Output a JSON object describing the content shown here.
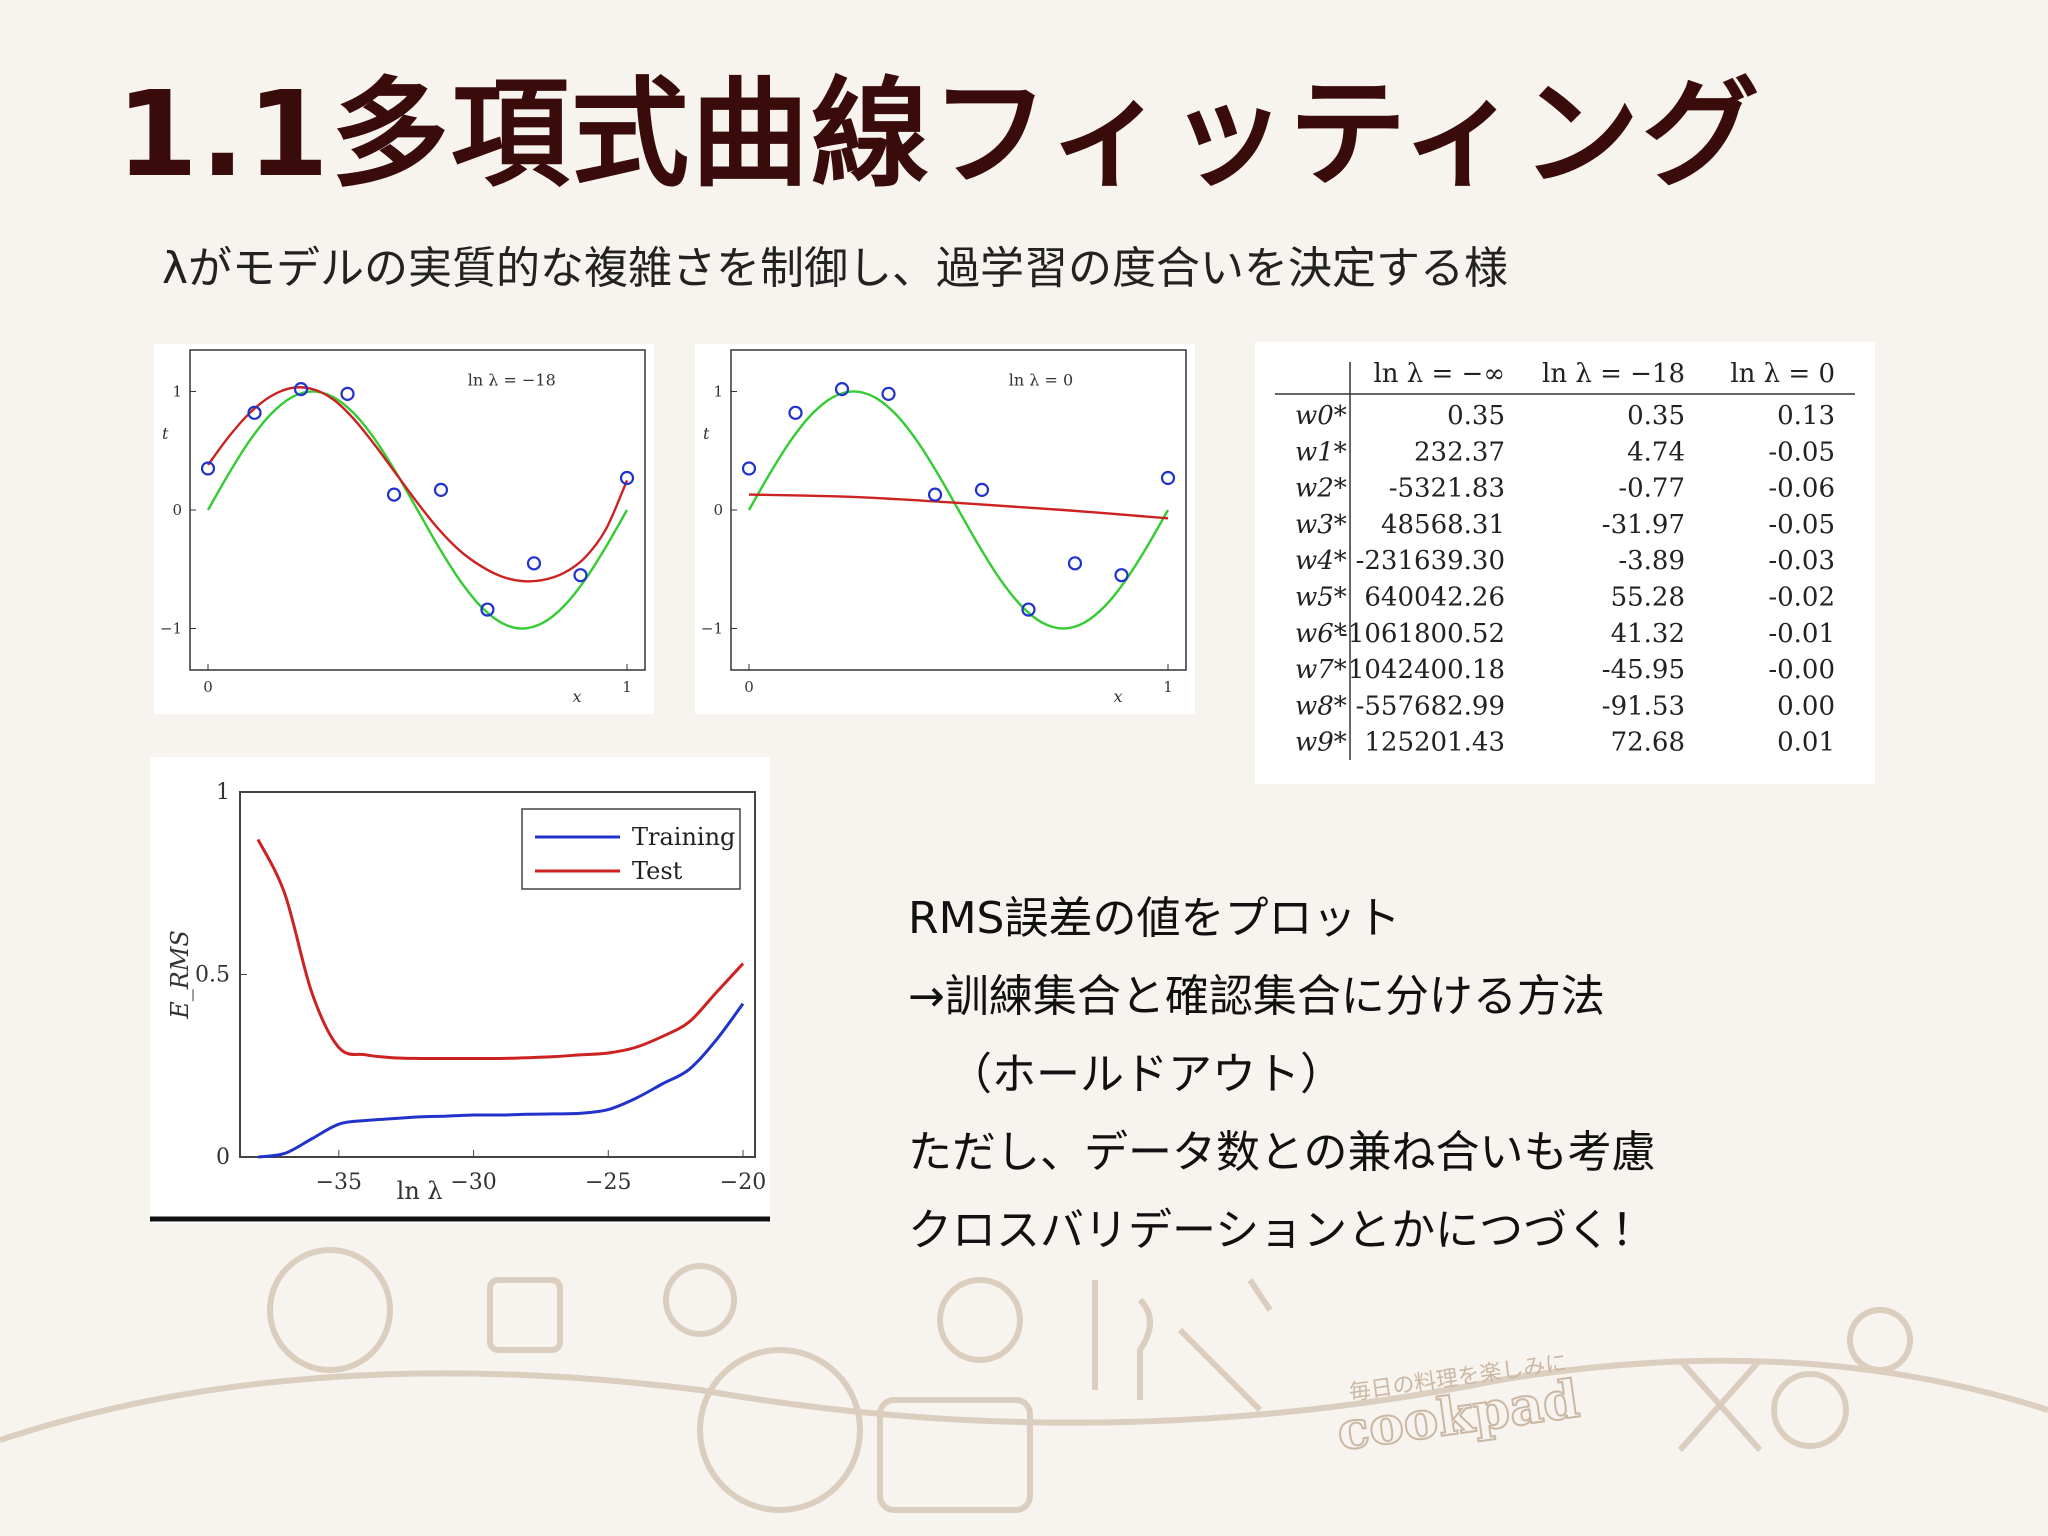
{
  "slide": {
    "title": "1.1多項式曲線フィッティング",
    "subtitle": "λがモデルの実質的な複雑さを制御し、過学習の度合いを決定する様"
  },
  "notes": [
    "RMS誤差の値をプロット",
    "→訓練集合と確認集合に分ける方法",
    "（ホールドアウト）",
    "ただし、データ数との兼ね合いも考慮",
    "クロスバリデーションとかにつづく！"
  ],
  "watermark": {
    "tagline": "毎日の料理を楽しみに",
    "brand": "cookpad"
  },
  "chart_data": [
    {
      "type": "scatter",
      "annotation": "ln λ = −18",
      "xlabel": "x",
      "ylabel": "t",
      "xlim": [
        0,
        1
      ],
      "ylim": [
        -1.35,
        1.35
      ],
      "xticks": [
        "0",
        "1"
      ],
      "yticks": [
        "−1",
        "0",
        "1"
      ],
      "points": {
        "x": [
          0.0,
          0.111,
          0.222,
          0.333,
          0.444,
          0.556,
          0.667,
          0.778,
          0.889,
          1.0
        ],
        "y": [
          0.35,
          0.82,
          1.02,
          0.98,
          0.13,
          0.17,
          -0.84,
          -0.45,
          -0.55,
          0.27
        ]
      },
      "series": [
        {
          "name": "",
          "color": "#33cc33",
          "x": [
            0,
            0.05,
            0.1,
            0.15,
            0.2,
            0.25,
            0.3,
            0.35,
            0.4,
            0.45,
            0.5,
            0.55,
            0.6,
            0.65,
            0.7,
            0.75,
            0.8,
            0.85,
            0.9,
            0.95,
            1.0
          ],
          "y": [
            0,
            0.309,
            0.588,
            0.809,
            0.951,
            1.0,
            0.951,
            0.809,
            0.588,
            0.309,
            0,
            -0.309,
            -0.588,
            -0.809,
            -0.951,
            -1.0,
            -0.951,
            -0.809,
            -0.588,
            -0.309,
            0
          ]
        },
        {
          "name": "",
          "color": "#cc2222",
          "x": [
            0,
            0.05,
            0.1,
            0.15,
            0.2,
            0.25,
            0.3,
            0.35,
            0.4,
            0.45,
            0.5,
            0.55,
            0.6,
            0.65,
            0.7,
            0.75,
            0.8,
            0.85,
            0.9,
            0.95,
            1.0
          ],
          "y": [
            0.38,
            0.62,
            0.82,
            0.96,
            1.03,
            1.02,
            0.93,
            0.76,
            0.54,
            0.3,
            0.06,
            -0.16,
            -0.34,
            -0.47,
            -0.56,
            -0.6,
            -0.59,
            -0.53,
            -0.4,
            -0.16,
            0.25
          ]
        }
      ]
    },
    {
      "type": "scatter",
      "annotation": "ln λ = 0",
      "xlabel": "x",
      "ylabel": "t",
      "xlim": [
        0,
        1
      ],
      "ylim": [
        -1.35,
        1.35
      ],
      "xticks": [
        "0",
        "1"
      ],
      "yticks": [
        "−1",
        "0",
        "1"
      ],
      "points": {
        "x": [
          0.0,
          0.111,
          0.222,
          0.333,
          0.444,
          0.556,
          0.667,
          0.778,
          0.889,
          1.0
        ],
        "y": [
          0.35,
          0.82,
          1.02,
          0.98,
          0.13,
          0.17,
          -0.84,
          -0.45,
          -0.55,
          0.27
        ]
      },
      "series": [
        {
          "name": "",
          "color": "#33cc33",
          "x": [
            0,
            0.05,
            0.1,
            0.15,
            0.2,
            0.25,
            0.3,
            0.35,
            0.4,
            0.45,
            0.5,
            0.55,
            0.6,
            0.65,
            0.7,
            0.75,
            0.8,
            0.85,
            0.9,
            0.95,
            1.0
          ],
          "y": [
            0,
            0.309,
            0.588,
            0.809,
            0.951,
            1.0,
            0.951,
            0.809,
            0.588,
            0.309,
            0,
            -0.309,
            -0.588,
            -0.809,
            -0.951,
            -1.0,
            -0.951,
            -0.809,
            -0.588,
            -0.309,
            0
          ]
        },
        {
          "name": "",
          "color": "#cc2222",
          "x": [
            0,
            0.25,
            0.5,
            0.75,
            1.0
          ],
          "y": [
            0.13,
            0.11,
            0.06,
            0.0,
            -0.07
          ]
        }
      ]
    },
    {
      "type": "table",
      "columns": [
        "",
        "ln λ = −∞",
        "ln λ = −18",
        "ln λ = 0"
      ],
      "rows": [
        [
          "w0*",
          "0.35",
          "0.35",
          "0.13"
        ],
        [
          "w1*",
          "232.37",
          "4.74",
          "-0.05"
        ],
        [
          "w2*",
          "-5321.83",
          "-0.77",
          "-0.06"
        ],
        [
          "w3*",
          "48568.31",
          "-31.97",
          "-0.05"
        ],
        [
          "w4*",
          "-231639.30",
          "-3.89",
          "-0.03"
        ],
        [
          "w5*",
          "640042.26",
          "55.28",
          "-0.02"
        ],
        [
          "w6*",
          "-1061800.52",
          "41.32",
          "-0.01"
        ],
        [
          "w7*",
          "1042400.18",
          "-45.95",
          "-0.00"
        ],
        [
          "w8*",
          "-557682.99",
          "-91.53",
          "0.00"
        ],
        [
          "w9*",
          "125201.43",
          "72.68",
          "0.01"
        ]
      ]
    },
    {
      "type": "line",
      "xlabel": "ln λ",
      "ylabel": "E_RMS",
      "xlim": [
        -38,
        -20
      ],
      "ylim": [
        0,
        1
      ],
      "xticks": [
        "−35",
        "−30",
        "−25",
        "−20"
      ],
      "yticks": [
        "0",
        "0.5",
        "1"
      ],
      "legend": "top-right",
      "series": [
        {
          "name": "Training",
          "color": "#2233cc",
          "x": [
            -38,
            -37,
            -36,
            -35,
            -34,
            -33,
            -32,
            -31,
            -30,
            -29,
            -28,
            -27,
            -26,
            -25,
            -24,
            -23,
            -22,
            -21,
            -20
          ],
          "y": [
            0.0,
            0.01,
            0.05,
            0.09,
            0.1,
            0.105,
            0.11,
            0.112,
            0.115,
            0.115,
            0.117,
            0.118,
            0.12,
            0.13,
            0.16,
            0.2,
            0.24,
            0.32,
            0.42
          ]
        },
        {
          "name": "Test",
          "color": "#cc2222",
          "x": [
            -38,
            -37,
            -36,
            -35,
            -34,
            -33,
            -32,
            -31,
            -30,
            -29,
            -28,
            -27,
            -26,
            -25,
            -24,
            -23,
            -22,
            -21,
            -20
          ],
          "y": [
            0.87,
            0.72,
            0.45,
            0.3,
            0.28,
            0.272,
            0.27,
            0.27,
            0.27,
            0.27,
            0.272,
            0.275,
            0.28,
            0.285,
            0.3,
            0.33,
            0.37,
            0.45,
            0.53
          ]
        }
      ]
    }
  ]
}
